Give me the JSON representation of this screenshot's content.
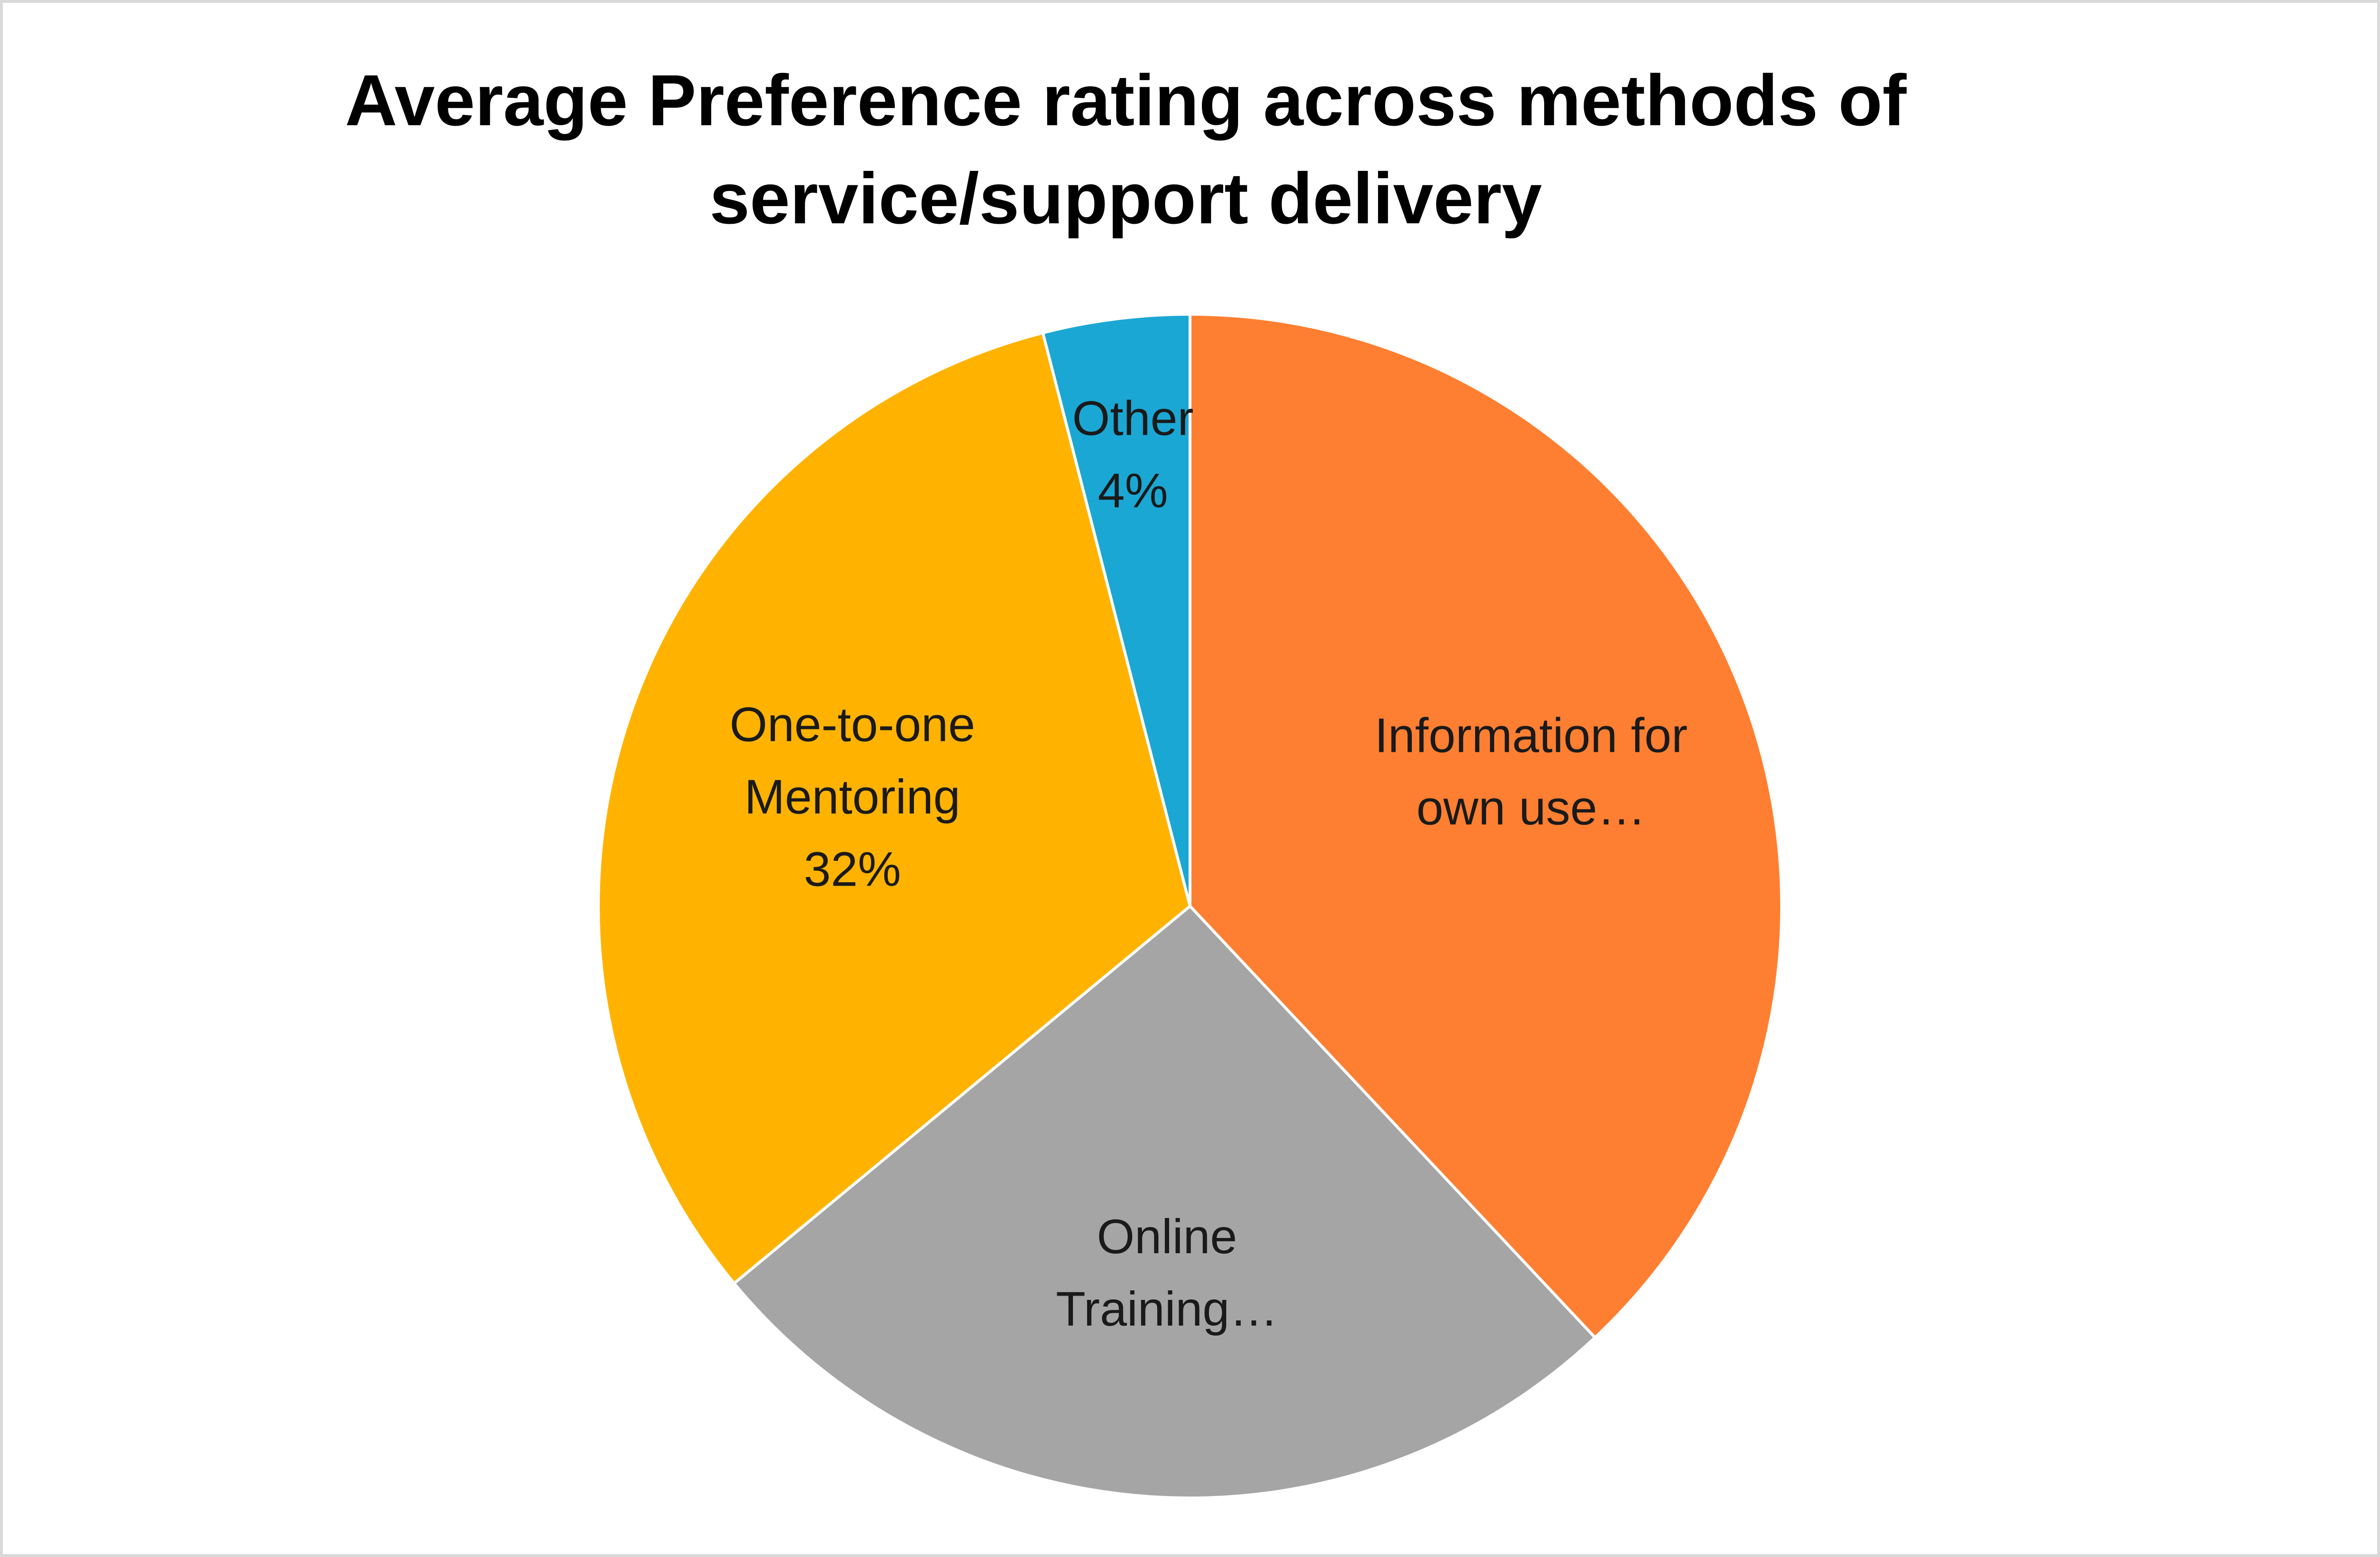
{
  "chart_data": {
    "type": "pie",
    "title": "Average Preference rating across methods of service/support delivery",
    "title_lines": [
      "Average Preference rating across methods of",
      "service/support delivery"
    ],
    "start_angle_deg": 0,
    "direction": "clockwise",
    "slices": [
      {
        "label": "Information for own use…",
        "label_lines": [
          "Information for",
          "own use…"
        ],
        "value": 38,
        "color": "#ff7f32"
      },
      {
        "label": "Online Training…",
        "label_lines": [
          "Online",
          "Training…"
        ],
        "value": 26,
        "color": "#a5a5a5"
      },
      {
        "label": "One-to-one Mentoring",
        "label_lines": [
          "One-to-one",
          "Mentoring",
          "32%"
        ],
        "value": 32,
        "color": "#ffb300"
      },
      {
        "label": "Other",
        "label_lines": [
          "Other",
          "4%"
        ],
        "value": 4,
        "color": "#1ba7d3"
      }
    ]
  }
}
